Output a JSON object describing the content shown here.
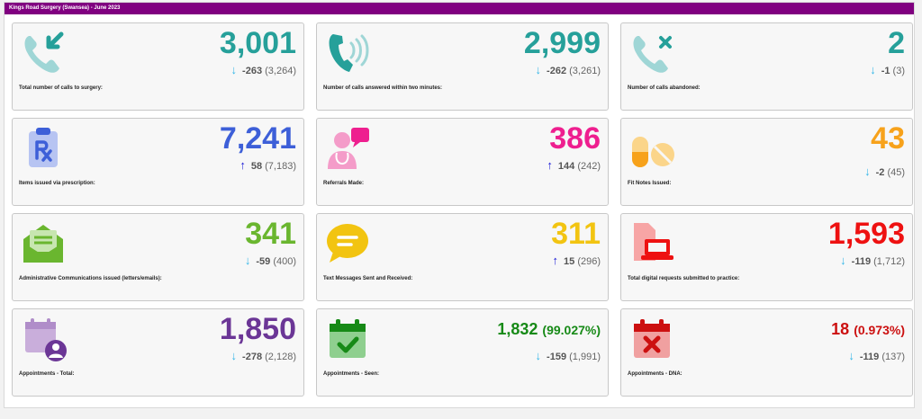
{
  "header": {
    "title": "Kings Road Surgery (Swansea) - June 2023"
  },
  "colors": {
    "title_bar": "#800080",
    "teal": "#26a09a",
    "blue": "#3d5fd8",
    "pink": "#ee1f8f",
    "orange": "#f7a21b",
    "green": "#6ab62f",
    "yellow": "#f2c411",
    "red": "#ee1111",
    "purple": "#6b3696",
    "dark_green": "#178a17",
    "dark_red": "#cc1010",
    "arrow_down": "#33b6e8",
    "arrow_up": "#1a1ad6"
  },
  "tiles": [
    {
      "value": "3,001",
      "arrow": "↓",
      "change": "-263",
      "prev": "(3,264)",
      "label": "Total number of calls to surgery:",
      "icon": "phone-incoming-icon"
    },
    {
      "value": "2,999",
      "arrow": "↓",
      "change": "-262",
      "prev": "(3,261)",
      "label": "Number of calls answered within two minutes:",
      "icon": "phone-ringing-icon"
    },
    {
      "value": "2",
      "arrow": "↓",
      "change": "-1",
      "prev": "(3)",
      "label": "Number of calls abandoned:",
      "icon": "phone-missed-icon"
    },
    {
      "value": "7,241",
      "arrow": "↑",
      "change": "58",
      "prev": "(7,183)",
      "label": "Items issued via prescription:",
      "icon": "prescription-icon"
    },
    {
      "value": "386",
      "arrow": "↑",
      "change": "144",
      "prev": "(242)",
      "label": "Referrals Made:",
      "icon": "doctor-chat-icon"
    },
    {
      "value": "43",
      "arrow": "↓",
      "change": "-2",
      "prev": "(45)",
      "label": "Fit Notes Issued:",
      "icon": "pills-icon"
    },
    {
      "value": "341",
      "arrow": "↓",
      "change": "-59",
      "prev": "(400)",
      "label": "Administrative Communications issued (letters/emails):",
      "icon": "envelope-letter-icon"
    },
    {
      "value": "311",
      "arrow": "↑",
      "change": "15",
      "prev": "(296)",
      "label": "Text Messages Sent and Received:",
      "icon": "speech-bubble-icon"
    },
    {
      "value": "1,593",
      "arrow": "↓",
      "change": "-119",
      "prev": "(1,712)",
      "label": "Total digital requests submitted to practice:",
      "icon": "laptop-document-icon"
    },
    {
      "value": "1,850",
      "arrow": "↓",
      "change": "-278",
      "prev": "(2,128)",
      "label": "Appointments - Total:",
      "icon": "calendar-user-icon"
    },
    {
      "value": "1,832",
      "pct": "(99.027%)",
      "arrow": "↓",
      "change": "-159",
      "prev": "(1,991)",
      "label": "Appointments - Seen:",
      "icon": "calendar-check-icon"
    },
    {
      "value": "18",
      "pct": "(0.973%)",
      "arrow": "↓",
      "change": "-119",
      "prev": "(137)",
      "label": "Appointments - DNA:",
      "icon": "calendar-cross-icon"
    }
  ]
}
